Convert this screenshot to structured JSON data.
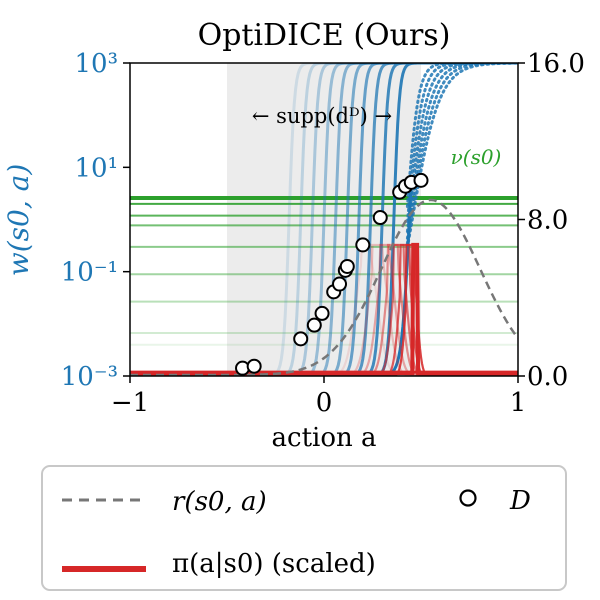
{
  "chart_data": {
    "type": "line",
    "title": "OptiDICE (Ours)",
    "xlabel": "action a",
    "ylabel_left": "w(s0, a)",
    "ylabel_right": "",
    "xlim": [
      -1,
      1
    ],
    "ylim_left_log10": [
      -3,
      3
    ],
    "ylim_right": [
      0,
      16
    ],
    "x_ticks": [
      {
        "value": -1,
        "label": "−1"
      },
      {
        "value": 0,
        "label": "0"
      },
      {
        "value": 1,
        "label": "1"
      }
    ],
    "y_left_ticks": [
      {
        "value": -3,
        "label": "10⁻³"
      },
      {
        "value": -1,
        "label": "10⁻¹"
      },
      {
        "value": 1,
        "label": "10¹"
      },
      {
        "value": 3,
        "label": "10³"
      }
    ],
    "y_right_ticks": [
      {
        "value": 0,
        "label": "0.0"
      },
      {
        "value": 8,
        "label": "8.0"
      },
      {
        "value": 16,
        "label": "16.0"
      }
    ],
    "support_region": {
      "x_from": -0.5,
      "x_to": 0.5,
      "label": "← supp(dᴰ) →"
    },
    "nu_label": "ν(s0)",
    "nu_levels_right_axis": [
      1.6,
      2.2,
      3.8,
      5.2,
      6.6,
      7.7,
      8.2,
      8.8,
      9.1
    ],
    "w_transition_centers": [
      -0.18,
      -0.12,
      -0.06,
      0.0,
      0.06,
      0.12,
      0.18,
      0.24,
      0.3,
      0.36,
      0.44
    ],
    "pi_peak_centers": [
      0.22,
      0.28,
      0.32,
      0.36,
      0.39,
      0.42,
      0.45,
      0.47
    ],
    "pi_peak_height_right_axis": 6.7,
    "reward": {
      "mu": 0.55,
      "sigma": 0.36,
      "peak_right_axis": 9.0,
      "floor_right_axis": 0.05
    },
    "dataset_points": [
      {
        "x": -0.42,
        "y": 0.4
      },
      {
        "x": -0.36,
        "y": 0.5
      },
      {
        "x": -0.12,
        "y": 1.9
      },
      {
        "x": -0.05,
        "y": 2.6
      },
      {
        "x": -0.01,
        "y": 3.2
      },
      {
        "x": 0.05,
        "y": 4.3
      },
      {
        "x": 0.08,
        "y": 4.7
      },
      {
        "x": 0.11,
        "y": 5.4
      },
      {
        "x": 0.12,
        "y": 5.6
      },
      {
        "x": 0.2,
        "y": 6.7
      },
      {
        "x": 0.29,
        "y": 8.1
      },
      {
        "x": 0.39,
        "y": 9.4
      },
      {
        "x": 0.42,
        "y": 9.7
      },
      {
        "x": 0.45,
        "y": 9.9
      },
      {
        "x": 0.5,
        "y": 10.0
      }
    ],
    "legend": {
      "placement": "bottom",
      "items": [
        {
          "key": "reward",
          "label": "r(s0, a)",
          "style": "dashed gray"
        },
        {
          "key": "dataset",
          "label": "D",
          "style": "open circle"
        },
        {
          "key": "policy",
          "label": "π(a|s0)  (scaled)",
          "style": "solid red"
        }
      ]
    },
    "colors": {
      "w": "#1f77b4",
      "nu": "#2ca02c",
      "pi": "#d62728",
      "reward": "#777777",
      "support": "#ececec",
      "left_axis_text": "#1f77b4",
      "nu_label": "#2ca02c"
    },
    "grid": false
  }
}
